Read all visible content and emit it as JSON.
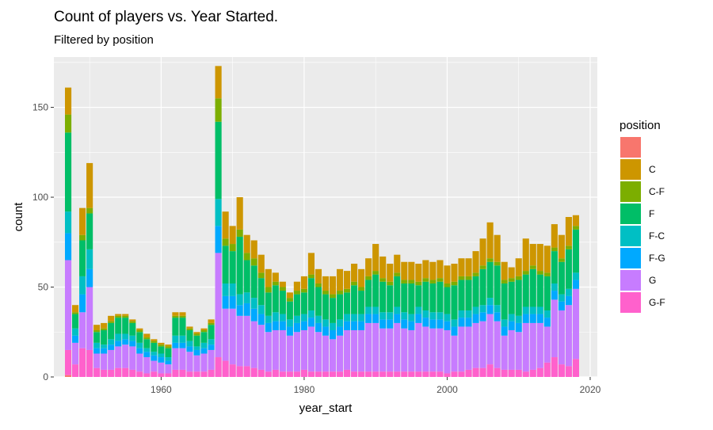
{
  "chart_data": {
    "type": "bar",
    "stacked": true,
    "title": "Count of players vs. Year Started.",
    "subtitle": "Filtered by position",
    "xlabel": "year_start",
    "ylabel": "count",
    "xlim": [
      1945,
      2021
    ],
    "ylim": [
      0,
      178
    ],
    "x_ticks": [
      1960,
      1980,
      2000,
      2020
    ],
    "y_ticks": [
      0,
      50,
      100,
      150
    ],
    "grid": true,
    "legend": {
      "title": "position",
      "placement": "right"
    },
    "series_colors": {
      "": "#F8766D",
      "C": "#CD9600",
      "C-F": "#7CAE00",
      "F": "#00BE67",
      "F-C": "#00BFC4",
      "F-G": "#00A9FF",
      "G": "#C77CFF",
      "G-F": "#FF61CC"
    },
    "x": [
      1947,
      1948,
      1949,
      1950,
      1951,
      1952,
      1953,
      1954,
      1955,
      1956,
      1957,
      1958,
      1959,
      1960,
      1961,
      1962,
      1963,
      1964,
      1965,
      1966,
      1967,
      1968,
      1969,
      1970,
      1971,
      1972,
      1973,
      1974,
      1975,
      1976,
      1977,
      1978,
      1979,
      1980,
      1981,
      1982,
      1983,
      1984,
      1985,
      1986,
      1987,
      1988,
      1989,
      1990,
      1991,
      1992,
      1993,
      1994,
      1995,
      1996,
      1997,
      1998,
      1999,
      2000,
      2001,
      2002,
      2003,
      2004,
      2005,
      2006,
      2007,
      2008,
      2009,
      2010,
      2011,
      2012,
      2013,
      2014,
      2015,
      2016,
      2017,
      2018
    ],
    "series": [
      {
        "name": "",
        "values": [
          1,
          0,
          0,
          0,
          0,
          0,
          0,
          0,
          0,
          0,
          0,
          0,
          0,
          0,
          0,
          0,
          0,
          0,
          0,
          0,
          0,
          0,
          0,
          0,
          0,
          0,
          0,
          0,
          0,
          0,
          0,
          0,
          0,
          0,
          0,
          0,
          0,
          0,
          0,
          0,
          0,
          0,
          0,
          0,
          0,
          0,
          0,
          0,
          0,
          0,
          0,
          0,
          0,
          0,
          0,
          0,
          0,
          0,
          0,
          0,
          0,
          0,
          0,
          0,
          0,
          0,
          0,
          0,
          0,
          0,
          0,
          0
        ]
      },
      {
        "name": "G-F",
        "values": [
          14,
          7,
          16,
          15,
          5,
          4,
          4,
          5,
          5,
          4,
          3,
          2,
          3,
          2,
          2,
          4,
          4,
          3,
          3,
          3,
          4,
          11,
          9,
          7,
          6,
          6,
          5,
          4,
          3,
          4,
          3,
          3,
          3,
          4,
          3,
          3,
          3,
          3,
          3,
          4,
          3,
          3,
          3,
          3,
          3,
          3,
          3,
          3,
          3,
          3,
          3,
          3,
          3,
          2,
          3,
          3,
          4,
          5,
          5,
          7,
          5,
          4,
          4,
          4,
          3,
          4,
          5,
          8,
          11,
          7,
          6,
          10
        ]
      },
      {
        "name": "G",
        "values": [
          50,
          12,
          20,
          35,
          8,
          9,
          11,
          12,
          13,
          13,
          10,
          9,
          6,
          6,
          5,
          12,
          12,
          11,
          9,
          10,
          11,
          58,
          29,
          31,
          28,
          28,
          26,
          25,
          22,
          22,
          23,
          20,
          22,
          22,
          25,
          22,
          20,
          18,
          20,
          22,
          23,
          23,
          27,
          27,
          24,
          24,
          27,
          24,
          23,
          27,
          25,
          24,
          24,
          24,
          20,
          25,
          24,
          25,
          26,
          28,
          26,
          19,
          22,
          21,
          27,
          26,
          25,
          20,
          32,
          30,
          34,
          39
        ]
      },
      {
        "name": "F-G",
        "values": [
          15,
          4,
          10,
          10,
          3,
          3,
          3,
          3,
          3,
          3,
          3,
          3,
          3,
          3,
          2,
          3,
          3,
          3,
          3,
          3,
          3,
          15,
          7,
          7,
          6,
          7,
          7,
          6,
          5,
          5,
          5,
          5,
          5,
          5,
          5,
          5,
          5,
          5,
          5,
          5,
          5,
          5,
          5,
          5,
          5,
          5,
          5,
          5,
          5,
          5,
          5,
          5,
          5,
          5,
          5,
          5,
          5,
          5,
          5,
          5,
          5,
          5,
          5,
          5,
          5,
          5,
          5,
          5,
          5,
          5,
          5,
          5
        ]
      },
      {
        "name": "F-C",
        "values": [
          12,
          4,
          10,
          11,
          3,
          2,
          3,
          4,
          3,
          3,
          3,
          2,
          2,
          2,
          2,
          4,
          4,
          3,
          2,
          3,
          3,
          15,
          7,
          7,
          6,
          6,
          6,
          5,
          4,
          5,
          4,
          4,
          4,
          4,
          4,
          4,
          4,
          4,
          4,
          4,
          4,
          4,
          4,
          4,
          4,
          4,
          4,
          4,
          4,
          4,
          4,
          4,
          4,
          4,
          4,
          4,
          4,
          4,
          4,
          4,
          4,
          4,
          4,
          4,
          4,
          4,
          4,
          4,
          4,
          4,
          4,
          4
        ]
      },
      {
        "name": "F",
        "values": [
          44,
          8,
          20,
          20,
          6,
          8,
          9,
          9,
          9,
          7,
          6,
          5,
          5,
          4,
          5,
          10,
          10,
          6,
          6,
          6,
          8,
          43,
          21,
          18,
          32,
          18,
          18,
          15,
          13,
          15,
          13,
          10,
          12,
          12,
          18,
          16,
          14,
          14,
          14,
          12,
          16,
          13,
          15,
          18,
          17,
          15,
          17,
          16,
          17,
          12,
          16,
          16,
          17,
          15,
          19,
          17,
          17,
          17,
          20,
          20,
          22,
          20,
          18,
          20,
          18,
          21,
          18,
          19,
          18,
          18,
          22,
          24
        ]
      },
      {
        "name": "C-F",
        "values": [
          10,
          1,
          3,
          3,
          1,
          1,
          1,
          1,
          1,
          1,
          1,
          1,
          1,
          1,
          1,
          1,
          1,
          1,
          1,
          1,
          1,
          13,
          4,
          4,
          4,
          4,
          4,
          3,
          3,
          2,
          2,
          2,
          2,
          2,
          2,
          2,
          2,
          2,
          2,
          2,
          2,
          2,
          2,
          2,
          2,
          2,
          2,
          2,
          2,
          2,
          2,
          2,
          2,
          2,
          2,
          2,
          2,
          2,
          2,
          2,
          2,
          2,
          2,
          2,
          2,
          2,
          2,
          2,
          2,
          2,
          2,
          2
        ]
      },
      {
        "name": "C",
        "values": [
          15,
          4,
          15,
          25,
          3,
          3,
          3,
          1,
          1,
          1,
          1,
          2,
          1,
          1,
          1,
          2,
          2,
          1,
          1,
          1,
          2,
          18,
          15,
          10,
          18,
          10,
          10,
          10,
          10,
          5,
          3,
          3,
          5,
          7,
          12,
          8,
          8,
          10,
          12,
          10,
          10,
          10,
          10,
          15,
          12,
          10,
          10,
          10,
          10,
          10,
          10,
          10,
          10,
          10,
          10,
          10,
          10,
          12,
          15,
          20,
          15,
          10,
          6,
          10,
          18,
          12,
          15,
          15,
          13,
          13,
          16,
          6
        ]
      }
    ]
  }
}
